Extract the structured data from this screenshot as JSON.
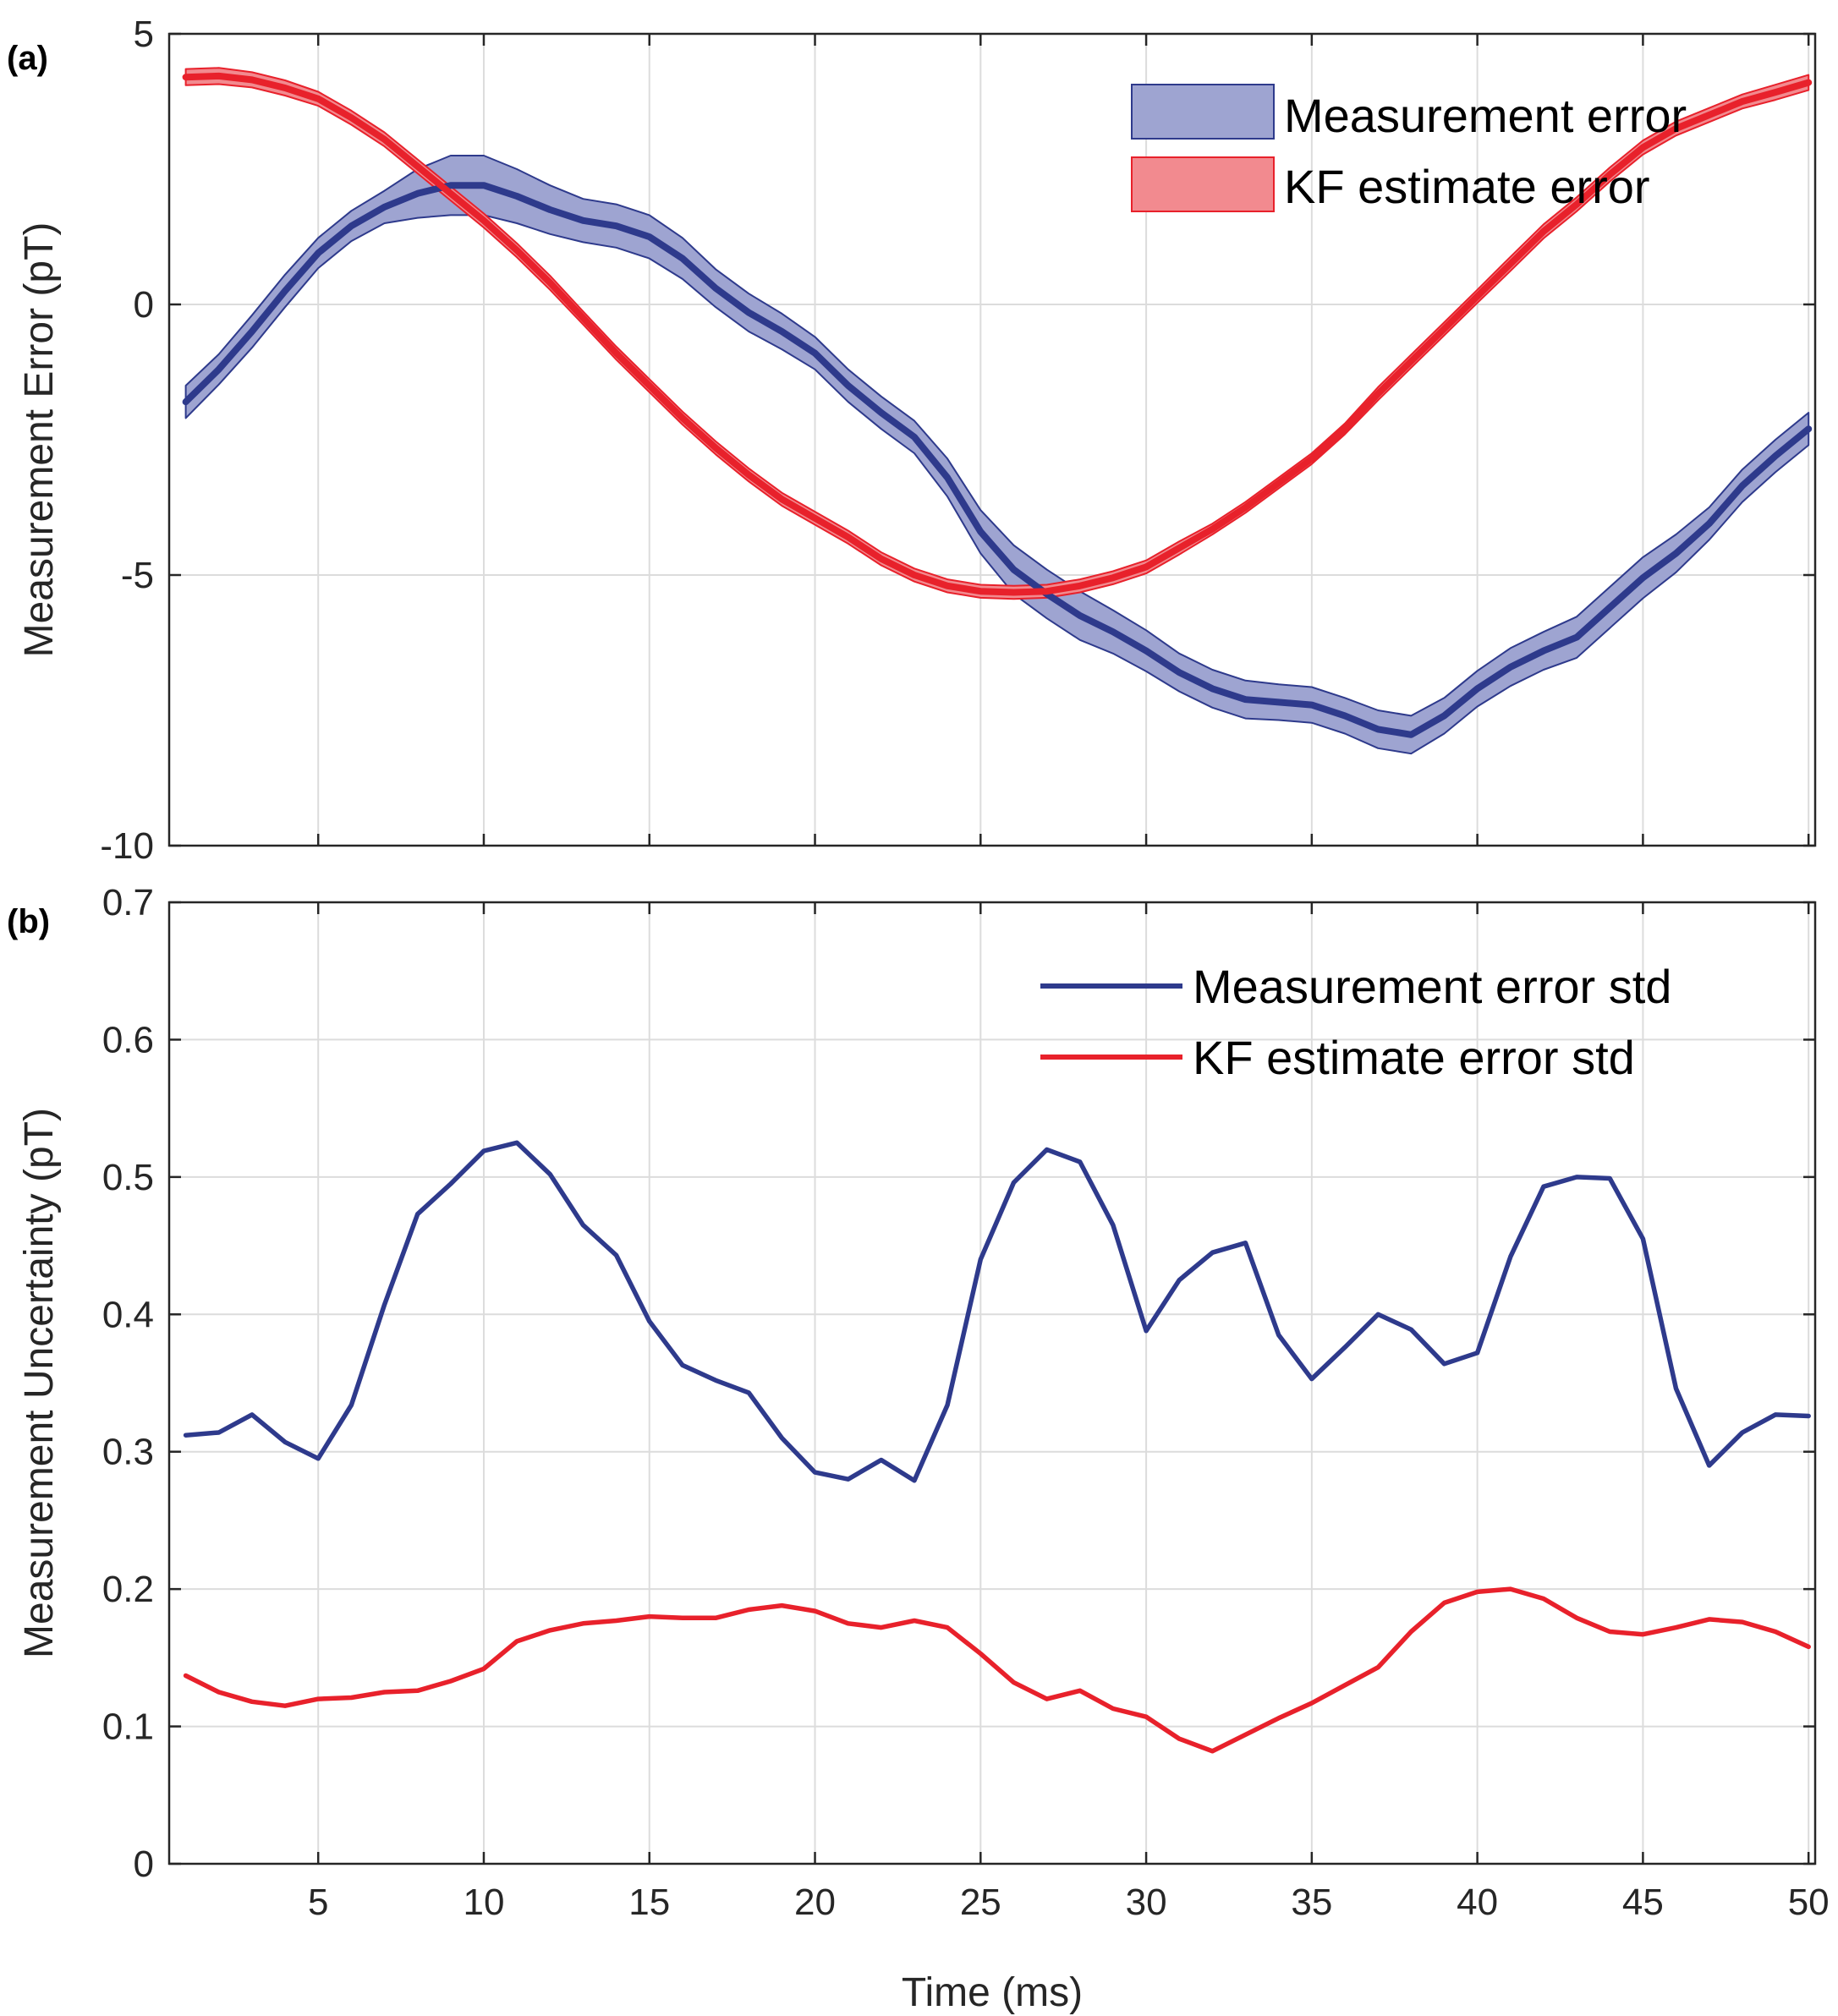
{
  "chart_data": [
    {
      "panel_label": "(a)",
      "type": "area",
      "xlabel": "",
      "ylabel": "Measurement Error (pT)",
      "xlim": [
        0.5,
        50.2
      ],
      "ylim": [
        -10,
        5
      ],
      "xticks": [
        5,
        10,
        15,
        20,
        25,
        30,
        35,
        40,
        45,
        50
      ],
      "yticks": [
        5,
        0,
        -5,
        -10
      ],
      "grid": true,
      "legend_position": "top-right",
      "x": [
        1,
        2,
        3,
        4,
        5,
        6,
        7,
        8,
        9,
        10,
        11,
        12,
        13,
        14,
        15,
        16,
        17,
        18,
        19,
        20,
        21,
        22,
        23,
        24,
        25,
        26,
        27,
        28,
        29,
        30,
        31,
        32,
        33,
        34,
        35,
        36,
        37,
        38,
        39,
        40,
        41,
        42,
        43,
        44,
        45,
        46,
        47,
        48,
        49,
        50
      ],
      "series": [
        {
          "name": "Measurement error",
          "color": "#2e3a8c",
          "fill": "#9ea4d1",
          "values": [
            -1.8,
            -1.2,
            -0.5,
            0.25,
            0.95,
            1.45,
            1.8,
            2.05,
            2.2,
            2.2,
            2.0,
            1.75,
            1.55,
            1.45,
            1.25,
            0.85,
            0.3,
            -0.15,
            -0.5,
            -0.9,
            -1.5,
            -2.0,
            -2.45,
            -3.2,
            -4.2,
            -4.9,
            -5.35,
            -5.75,
            -6.05,
            -6.4,
            -6.8,
            -7.1,
            -7.3,
            -7.35,
            -7.4,
            -7.6,
            -7.85,
            -7.95,
            -7.6,
            -7.1,
            -6.7,
            -6.4,
            -6.15,
            -5.6,
            -5.05,
            -4.6,
            -4.05,
            -3.35,
            -2.8,
            -2.3
          ],
          "band_halfwidth": [
            0.3,
            0.28,
            0.3,
            0.3,
            0.28,
            0.28,
            0.3,
            0.45,
            0.55,
            0.55,
            0.5,
            0.45,
            0.4,
            0.4,
            0.4,
            0.38,
            0.35,
            0.35,
            0.33,
            0.3,
            0.3,
            0.3,
            0.3,
            0.35,
            0.4,
            0.45,
            0.45,
            0.45,
            0.4,
            0.38,
            0.35,
            0.35,
            0.35,
            0.33,
            0.33,
            0.33,
            0.35,
            0.35,
            0.33,
            0.33,
            0.35,
            0.35,
            0.38,
            0.38,
            0.38,
            0.35,
            0.3,
            0.3,
            0.3,
            0.3
          ]
        },
        {
          "name": "KF estimate error",
          "color": "#e8212b",
          "fill": "#f28a8f",
          "values": [
            4.2,
            4.22,
            4.15,
            4.0,
            3.8,
            3.45,
            3.05,
            2.55,
            2.05,
            1.55,
            1.0,
            0.4,
            -0.25,
            -0.9,
            -1.5,
            -2.1,
            -2.65,
            -3.15,
            -3.6,
            -3.95,
            -4.3,
            -4.7,
            -5.0,
            -5.2,
            -5.3,
            -5.32,
            -5.3,
            -5.2,
            -5.05,
            -4.85,
            -4.5,
            -4.15,
            -3.75,
            -3.3,
            -2.85,
            -2.3,
            -1.65,
            -1.05,
            -0.45,
            0.15,
            0.75,
            1.35,
            1.85,
            2.4,
            2.9,
            3.25,
            3.5,
            3.75,
            3.92,
            4.1
          ],
          "band_halfwidth": [
            0.15,
            0.15,
            0.14,
            0.14,
            0.13,
            0.13,
            0.13,
            0.13,
            0.13,
            0.13,
            0.13,
            0.13,
            0.12,
            0.12,
            0.12,
            0.12,
            0.12,
            0.12,
            0.12,
            0.12,
            0.12,
            0.12,
            0.12,
            0.12,
            0.12,
            0.12,
            0.12,
            0.12,
            0.12,
            0.12,
            0.12,
            0.1,
            0.1,
            0.1,
            0.1,
            0.1,
            0.12,
            0.12,
            0.12,
            0.12,
            0.13,
            0.13,
            0.13,
            0.13,
            0.13,
            0.13,
            0.13,
            0.13,
            0.14,
            0.14
          ]
        }
      ]
    },
    {
      "panel_label": "(b)",
      "type": "line",
      "xlabel": "Time (ms)",
      "ylabel": "Measurement Uncertainty  (pT)",
      "xlim": [
        0.5,
        50.2
      ],
      "ylim": [
        0,
        0.7
      ],
      "xticks": [
        5,
        10,
        15,
        20,
        25,
        30,
        35,
        40,
        45,
        50
      ],
      "yticks": [
        0.7,
        0.6,
        0.5,
        0.4,
        0.3,
        0.2,
        0.1,
        0
      ],
      "grid": true,
      "legend_position": "top-right",
      "x": [
        1,
        2,
        3,
        4,
        5,
        6,
        7,
        8,
        9,
        10,
        11,
        12,
        13,
        14,
        15,
        16,
        17,
        18,
        19,
        20,
        21,
        22,
        23,
        24,
        25,
        26,
        27,
        28,
        29,
        30,
        31,
        32,
        33,
        34,
        35,
        36,
        37,
        38,
        39,
        40,
        41,
        42,
        43,
        44,
        45,
        46,
        47,
        48,
        49,
        50
      ],
      "series": [
        {
          "name": "Measurement error std",
          "color": "#2e3a8c",
          "values": [
            0.312,
            0.314,
            0.327,
            0.307,
            0.295,
            0.334,
            0.407,
            0.473,
            0.495,
            0.519,
            0.525,
            0.502,
            0.465,
            0.443,
            0.395,
            0.363,
            0.352,
            0.343,
            0.31,
            0.285,
            0.28,
            0.294,
            0.279,
            0.334,
            0.44,
            0.496,
            0.52,
            0.511,
            0.465,
            0.388,
            0.425,
            0.445,
            0.452,
            0.385,
            0.353,
            0.376,
            0.4,
            0.389,
            0.364,
            0.372,
            0.442,
            0.493,
            0.5,
            0.499,
            0.455,
            0.346,
            0.29,
            0.314,
            0.327,
            0.326
          ]
        },
        {
          "name": "KF estimate error std",
          "color": "#e8212b",
          "values": [
            0.137,
            0.125,
            0.118,
            0.115,
            0.12,
            0.121,
            0.125,
            0.126,
            0.133,
            0.142,
            0.162,
            0.17,
            0.175,
            0.177,
            0.18,
            0.179,
            0.179,
            0.185,
            0.188,
            0.184,
            0.175,
            0.172,
            0.177,
            0.172,
            0.153,
            0.132,
            0.12,
            0.126,
            0.113,
            0.107,
            0.091,
            0.082,
            0.094,
            0.106,
            0.117,
            0.13,
            0.143,
            0.169,
            0.19,
            0.198,
            0.2,
            0.193,
            0.179,
            0.169,
            0.167,
            0.172,
            0.178,
            0.176,
            0.169,
            0.158
          ]
        }
      ]
    }
  ]
}
